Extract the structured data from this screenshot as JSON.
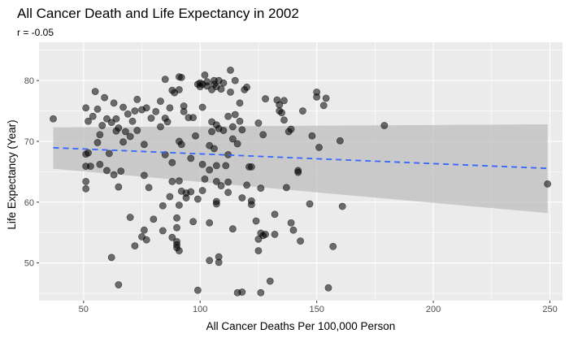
{
  "chart_data": {
    "type": "scatter",
    "title": "All Cancer Death and Life Expectancy in 2002",
    "subtitle": "r =  -0.05",
    "xlabel": "All Cancer Deaths Per 100,000 Person",
    "ylabel": "Life Expectancy (Year)",
    "xlim": [
      30.9,
      255.4
    ],
    "ylim": [
      43.8,
      86.3
    ],
    "xticks": [
      50,
      100,
      150,
      200,
      250
    ],
    "yticks": [
      50,
      60,
      70,
      80
    ],
    "grid": true,
    "point_color": "#000000",
    "trend_color": "#3366ff",
    "band_color": "#bdbdbd",
    "panel_color": "#ebebeb",
    "trend": {
      "method": "lm",
      "linetype": "dashed",
      "x": [
        37,
        249
      ],
      "y": [
        68.95,
        65.55
      ],
      "ci_lower": [
        65.5,
        58.2
      ],
      "ci_upper": [
        72.3,
        72.8
      ]
    },
    "points": [
      [
        37,
        73.7
      ],
      [
        51,
        75.5
      ],
      [
        51,
        67.9
      ],
      [
        51,
        65.9
      ],
      [
        51,
        63.4
      ],
      [
        51,
        62.2
      ],
      [
        52,
        73.3
      ],
      [
        52,
        68.1
      ],
      [
        53,
        65.9
      ],
      [
        54,
        74.1
      ],
      [
        55,
        78.2
      ],
      [
        56,
        75.3
      ],
      [
        56,
        69.8
      ],
      [
        57,
        66.2
      ],
      [
        57,
        71.1
      ],
      [
        58,
        72.6
      ],
      [
        59,
        77.2
      ],
      [
        60,
        65.2
      ],
      [
        60,
        73.7
      ],
      [
        61,
        68.0
      ],
      [
        62,
        73.1
      ],
      [
        62,
        50.9
      ],
      [
        63,
        64.5
      ],
      [
        63,
        76.3
      ],
      [
        64,
        71.7
      ],
      [
        64,
        73.7
      ],
      [
        65,
        72.2
      ],
      [
        65,
        46.4
      ],
      [
        65,
        62.5
      ],
      [
        66,
        65.1
      ],
      [
        67,
        69.9
      ],
      [
        67,
        75.6
      ],
      [
        68,
        71.6
      ],
      [
        69,
        74.5
      ],
      [
        70,
        70.8
      ],
      [
        70,
        57.5
      ],
      [
        71,
        73.3
      ],
      [
        72,
        75.0
      ],
      [
        72,
        52.8
      ],
      [
        73,
        71.8
      ],
      [
        73,
        76.9
      ],
      [
        75,
        75.2
      ],
      [
        75,
        54.3
      ],
      [
        76,
        69.5
      ],
      [
        76,
        64.4
      ],
      [
        76,
        55.4
      ],
      [
        77,
        53.8
      ],
      [
        77,
        75.5
      ],
      [
        78,
        62.4
      ],
      [
        79,
        73.8
      ],
      [
        80,
        57.2
      ],
      [
        81,
        74.9
      ],
      [
        83,
        76.6
      ],
      [
        83,
        72.4
      ],
      [
        84,
        55.3
      ],
      [
        84,
        59.4
      ],
      [
        85,
        73.8
      ],
      [
        85,
        80.2
      ],
      [
        85,
        67.8
      ],
      [
        86,
        73.2
      ],
      [
        87,
        75.5
      ],
      [
        87,
        60.9
      ],
      [
        88,
        78.4
      ],
      [
        88,
        66.5
      ],
      [
        88,
        63.4
      ],
      [
        88,
        54.2
      ],
      [
        89,
        78.0
      ],
      [
        90,
        57.4
      ],
      [
        90,
        55.8
      ],
      [
        90,
        53.5
      ],
      [
        90,
        53.0
      ],
      [
        90,
        52.5
      ],
      [
        91,
        80.6
      ],
      [
        91,
        78.5
      ],
      [
        91,
        70.0
      ],
      [
        91,
        63.5
      ],
      [
        91,
        59.5
      ],
      [
        91,
        52.0
      ],
      [
        92,
        69.5
      ],
      [
        92,
        80.5
      ],
      [
        92,
        61.8
      ],
      [
        93,
        74.9
      ],
      [
        93,
        75.8
      ],
      [
        94,
        60.7
      ],
      [
        94,
        61.5
      ],
      [
        95,
        73.9
      ],
      [
        96,
        67.2
      ],
      [
        96,
        61.7
      ],
      [
        97,
        73.9
      ],
      [
        97,
        56.8
      ],
      [
        98,
        70.9
      ],
      [
        99,
        79.4
      ],
      [
        99,
        60.5
      ],
      [
        99,
        45.5
      ],
      [
        100,
        79.0
      ],
      [
        100,
        79.6
      ],
      [
        101,
        79.4
      ],
      [
        101,
        75.6
      ],
      [
        101,
        66.2
      ],
      [
        101,
        61.9
      ],
      [
        102,
        80.9
      ],
      [
        102,
        63.8
      ],
      [
        103,
        79.1
      ],
      [
        103,
        79.8
      ],
      [
        104,
        69.3
      ],
      [
        104,
        65.3
      ],
      [
        104,
        50.4
      ],
      [
        104,
        56.6
      ],
      [
        105,
        73.2
      ],
      [
        105,
        78.5
      ],
      [
        105,
        71.6
      ],
      [
        106,
        79.4
      ],
      [
        106,
        68.8
      ],
      [
        106,
        80.0
      ],
      [
        107,
        79.0
      ],
      [
        107,
        72.7
      ],
      [
        107,
        66.0
      ],
      [
        107,
        63.4
      ],
      [
        107,
        60.1
      ],
      [
        107,
        59.7
      ],
      [
        108,
        72.1
      ],
      [
        108,
        51.0
      ],
      [
        108,
        50.1
      ],
      [
        108,
        80.0
      ],
      [
        109,
        78.6
      ],
      [
        109,
        62.7
      ],
      [
        110,
        79.6
      ],
      [
        110,
        71.8
      ],
      [
        111,
        66.0
      ],
      [
        112,
        63.3
      ],
      [
        112,
        67.8
      ],
      [
        112,
        61.6
      ],
      [
        112,
        74.1
      ],
      [
        113,
        81.7
      ],
      [
        113,
        78.1
      ],
      [
        114,
        70.4
      ],
      [
        114,
        55.6
      ],
      [
        114,
        72.4
      ],
      [
        115,
        80.0
      ],
      [
        115,
        74.4
      ],
      [
        116,
        69.6
      ],
      [
        116,
        45.1
      ],
      [
        117,
        76.3
      ],
      [
        117,
        73.3
      ],
      [
        118,
        60.7
      ],
      [
        118,
        71.9
      ],
      [
        118,
        45.2
      ],
      [
        119,
        78.5
      ],
      [
        120,
        78.9
      ],
      [
        120,
        62.8
      ],
      [
        121,
        65.8
      ],
      [
        122,
        60.2
      ],
      [
        122,
        65.8
      ],
      [
        122,
        59.6
      ],
      [
        124,
        56.9
      ],
      [
        125,
        73.0
      ],
      [
        125,
        53.9
      ],
      [
        125,
        52.0
      ],
      [
        126,
        62.3
      ],
      [
        126,
        54.9
      ],
      [
        126,
        45.1
      ],
      [
        127,
        71.1
      ],
      [
        127,
        54.5
      ],
      [
        128,
        77.0
      ],
      [
        128,
        54.7
      ],
      [
        130,
        47.0
      ],
      [
        132,
        54.7
      ],
      [
        132,
        58.0
      ],
      [
        133,
        76.8
      ],
      [
        134,
        76.0
      ],
      [
        134,
        75.0
      ],
      [
        135,
        74.7
      ],
      [
        136,
        76.7
      ],
      [
        136,
        73.5
      ],
      [
        137,
        62.4
      ],
      [
        138,
        71.6
      ],
      [
        139,
        72.0
      ],
      [
        139,
        56.6
      ],
      [
        140,
        55.4
      ],
      [
        142,
        64.9
      ],
      [
        142,
        65.2
      ],
      [
        143,
        53.6
      ],
      [
        144,
        75.0
      ],
      [
        147,
        59.7
      ],
      [
        148,
        70.9
      ],
      [
        150,
        77.3
      ],
      [
        150,
        78.1
      ],
      [
        151,
        69.0
      ],
      [
        153,
        75.9
      ],
      [
        154,
        77.1
      ],
      [
        155,
        45.9
      ],
      [
        157,
        52.7
      ],
      [
        160,
        70.1
      ],
      [
        161,
        59.3
      ],
      [
        179,
        72.6
      ],
      [
        249,
        63.0
      ]
    ]
  }
}
